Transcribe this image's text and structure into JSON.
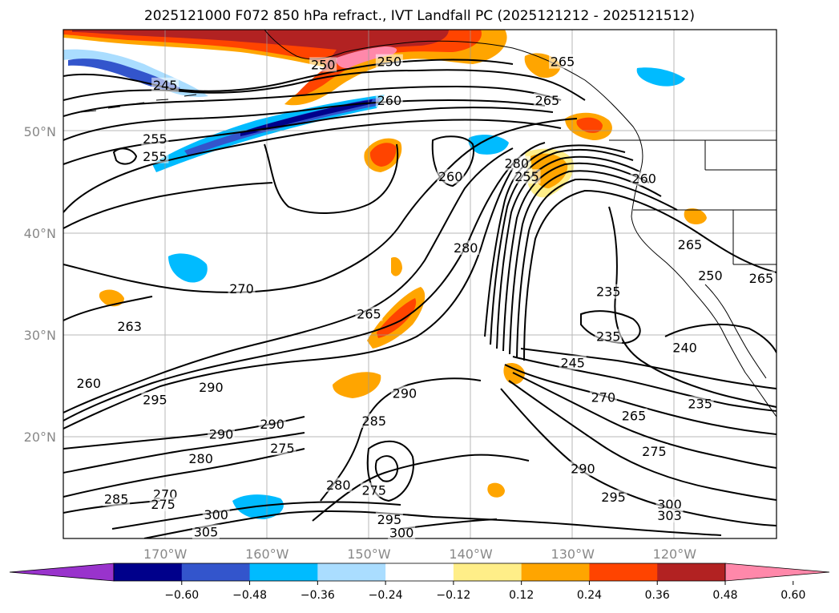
{
  "title": "2025121000 F072 850 hPa refract., IVT Landfall PC (2025121212 - 2025121512)",
  "map": {
    "lon_range": [
      -180,
      -110
    ],
    "lat_range": [
      10,
      60
    ],
    "lon_ticks": [
      {
        "value": -170,
        "label": "170°W"
      },
      {
        "value": -160,
        "label": "160°W"
      },
      {
        "value": -150,
        "label": "150°W"
      },
      {
        "value": -140,
        "label": "140°W"
      },
      {
        "value": -130,
        "label": "130°W"
      },
      {
        "value": -120,
        "label": "120°W"
      }
    ],
    "lat_ticks": [
      {
        "value": 50,
        "label": "50°N"
      },
      {
        "value": 40,
        "label": "40°N"
      },
      {
        "value": 30,
        "label": "30°N"
      },
      {
        "value": 20,
        "label": "20°N"
      }
    ],
    "grid": true,
    "contour_labels": [
      {
        "text": "245",
        "lon": -170,
        "lat": 54.5
      },
      {
        "text": "250",
        "lon": -154.5,
        "lat": 56.5
      },
      {
        "text": "250",
        "lon": -148,
        "lat": 56.8
      },
      {
        "text": "260",
        "lon": -148,
        "lat": 53
      },
      {
        "text": "265",
        "lon": -131,
        "lat": 56.8
      },
      {
        "text": "265",
        "lon": -132.5,
        "lat": 53
      },
      {
        "text": "255",
        "lon": -171,
        "lat": 49.2
      },
      {
        "text": "255",
        "lon": -171,
        "lat": 47.5
      },
      {
        "text": "260",
        "lon": -142,
        "lat": 45.5
      },
      {
        "text": "280",
        "lon": -135.5,
        "lat": 46.8
      },
      {
        "text": "255",
        "lon": -134.5,
        "lat": 45.5
      },
      {
        "text": "260",
        "lon": -123,
        "lat": 45.3
      },
      {
        "text": "280",
        "lon": -140.5,
        "lat": 38.5
      },
      {
        "text": "265",
        "lon": -118.5,
        "lat": 38.8
      },
      {
        "text": "250",
        "lon": -116.5,
        "lat": 35.8
      },
      {
        "text": "265",
        "lon": -111.5,
        "lat": 35.5
      },
      {
        "text": "270",
        "lon": -162.5,
        "lat": 34.5
      },
      {
        "text": "235",
        "lon": -126.5,
        "lat": 34.2
      },
      {
        "text": "265",
        "lon": -150,
        "lat": 32
      },
      {
        "text": "263",
        "lon": -173.5,
        "lat": 30.8
      },
      {
        "text": "235",
        "lon": -126.5,
        "lat": 29.8
      },
      {
        "text": "240",
        "lon": -119,
        "lat": 28.7
      },
      {
        "text": "245",
        "lon": -130,
        "lat": 27.2
      },
      {
        "text": "260",
        "lon": -177.5,
        "lat": 25.2
      },
      {
        "text": "290",
        "lon": -165.5,
        "lat": 24.8
      },
      {
        "text": "295",
        "lon": -171,
        "lat": 23.6
      },
      {
        "text": "290",
        "lon": -146.5,
        "lat": 24.2
      },
      {
        "text": "270",
        "lon": -127,
        "lat": 23.8
      },
      {
        "text": "235",
        "lon": -117.5,
        "lat": 23.2
      },
      {
        "text": "265",
        "lon": -124,
        "lat": 22
      },
      {
        "text": "285",
        "lon": -149.5,
        "lat": 21.5
      },
      {
        "text": "290",
        "lon": -159.5,
        "lat": 21.2
      },
      {
        "text": "290",
        "lon": -164.5,
        "lat": 20.2
      },
      {
        "text": "275",
        "lon": -158.5,
        "lat": 18.8
      },
      {
        "text": "275",
        "lon": -122,
        "lat": 18.5
      },
      {
        "text": "280",
        "lon": -166.5,
        "lat": 17.8
      },
      {
        "text": "290",
        "lon": -129,
        "lat": 16.8
      },
      {
        "text": "280",
        "lon": -153,
        "lat": 15.2
      },
      {
        "text": "275",
        "lon": -149.5,
        "lat": 14.7
      },
      {
        "text": "285",
        "lon": -174.8,
        "lat": 13.8
      },
      {
        "text": "270",
        "lon": -170,
        "lat": 14.3
      },
      {
        "text": "295",
        "lon": -126,
        "lat": 14
      },
      {
        "text": "275",
        "lon": -170.2,
        "lat": 13.3
      },
      {
        "text": "300",
        "lon": -120.5,
        "lat": 13.3
      },
      {
        "text": "303",
        "lon": -120.5,
        "lat": 12.2
      },
      {
        "text": "300",
        "lon": -165,
        "lat": 12.3
      },
      {
        "text": "295",
        "lon": -148,
        "lat": 11.8
      },
      {
        "text": "305",
        "lon": -166,
        "lat": 10.6
      },
      {
        "text": "300",
        "lon": -146.8,
        "lat": 10.5
      }
    ]
  },
  "colorbar": {
    "colors": [
      "#9933cc",
      "#00008b",
      "#3355cc",
      "#00bbff",
      "#aaddff",
      "#ffffff",
      "#ffee88",
      "#ffa500",
      "#ff4400",
      "#b22222",
      "#ff88aa"
    ],
    "ticks": [
      "−0.60",
      "−0.48",
      "−0.36",
      "−0.24",
      "−0.12",
      "0.12",
      "0.24",
      "0.36",
      "0.48",
      "0.60"
    ]
  }
}
